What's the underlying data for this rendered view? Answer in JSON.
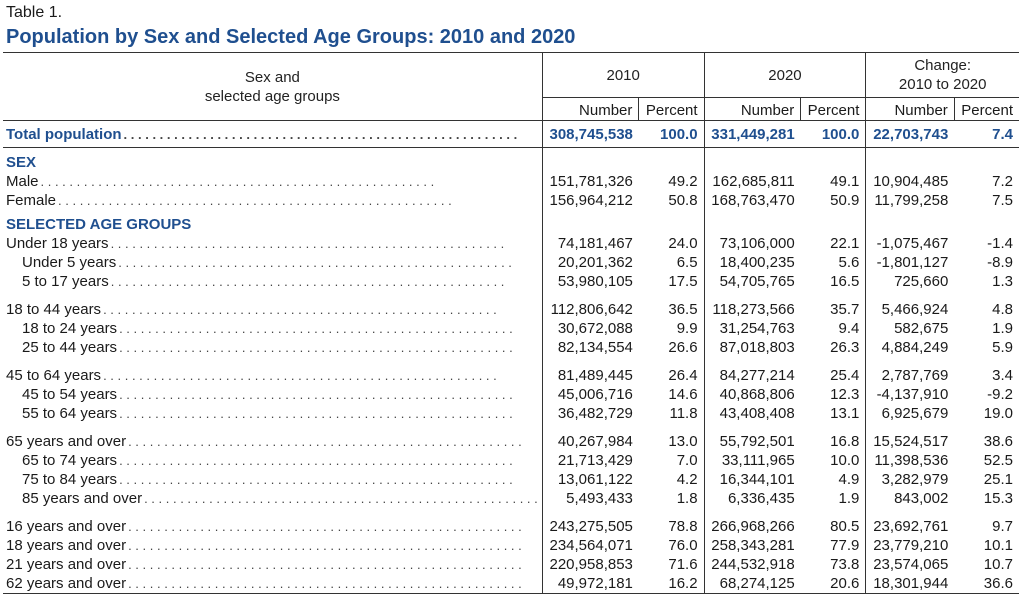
{
  "table_label": "Table 1.",
  "title": "Population by Sex and Selected Age Groups: 2010 and 2020",
  "header": {
    "stub_line1": "Sex and",
    "stub_line2": "selected age groups",
    "col_2010": "2010",
    "col_2020": "2020",
    "col_change_line1": "Change:",
    "col_change_line2": "2010 to 2020",
    "number": "Number",
    "percent": "Percent"
  },
  "total": {
    "label": "Total population",
    "n2010": "308,745,538",
    "p2010": "100.0",
    "n2020": "331,449,281",
    "p2020": "100.0",
    "nchg": "22,703,743",
    "pchg": "7.4"
  },
  "sections": {
    "sex": "SEX",
    "age": "SELECTED AGE GROUPS"
  },
  "rows": {
    "male": {
      "label": "Male",
      "n2010": "151,781,326",
      "p2010": "49.2",
      "n2020": "162,685,811",
      "p2020": "49.1",
      "nchg": "10,904,485",
      "pchg": "7.2"
    },
    "female": {
      "label": "Female",
      "n2010": "156,964,212",
      "p2010": "50.8",
      "n2020": "168,763,470",
      "p2020": "50.9",
      "nchg": "11,799,258",
      "pchg": "7.5"
    },
    "u18": {
      "label": "Under 18 years",
      "n2010": "74,181,467",
      "p2010": "24.0",
      "n2020": "73,106,000",
      "p2020": "22.1",
      "nchg": "-1,075,467",
      "pchg": "-1.4"
    },
    "u5": {
      "label": "Under 5 years",
      "n2010": "20,201,362",
      "p2010": "6.5",
      "n2020": "18,400,235",
      "p2020": "5.6",
      "nchg": "-1,801,127",
      "pchg": "-8.9"
    },
    "a5_17": {
      "label": "5 to 17 years",
      "n2010": "53,980,105",
      "p2010": "17.5",
      "n2020": "54,705,765",
      "p2020": "16.5",
      "nchg": "725,660",
      "pchg": "1.3"
    },
    "a18_44": {
      "label": "18 to 44 years",
      "n2010": "112,806,642",
      "p2010": "36.5",
      "n2020": "118,273,566",
      "p2020": "35.7",
      "nchg": "5,466,924",
      "pchg": "4.8"
    },
    "a18_24": {
      "label": "18 to 24 years",
      "n2010": "30,672,088",
      "p2010": "9.9",
      "n2020": "31,254,763",
      "p2020": "9.4",
      "nchg": "582,675",
      "pchg": "1.9"
    },
    "a25_44": {
      "label": "25 to 44 years",
      "n2010": "82,134,554",
      "p2010": "26.6",
      "n2020": "87,018,803",
      "p2020": "26.3",
      "nchg": "4,884,249",
      "pchg": "5.9"
    },
    "a45_64": {
      "label": "45 to 64 years",
      "n2010": "81,489,445",
      "p2010": "26.4",
      "n2020": "84,277,214",
      "p2020": "25.4",
      "nchg": "2,787,769",
      "pchg": "3.4"
    },
    "a45_54": {
      "label": "45 to 54 years",
      "n2010": "45,006,716",
      "p2010": "14.6",
      "n2020": "40,868,806",
      "p2020": "12.3",
      "nchg": "-4,137,910",
      "pchg": "-9.2"
    },
    "a55_64": {
      "label": "55 to 64 years",
      "n2010": "36,482,729",
      "p2010": "11.8",
      "n2020": "43,408,408",
      "p2020": "13.1",
      "nchg": "6,925,679",
      "pchg": "19.0"
    },
    "a65p": {
      "label": "65 years and over",
      "n2010": "40,267,984",
      "p2010": "13.0",
      "n2020": "55,792,501",
      "p2020": "16.8",
      "nchg": "15,524,517",
      "pchg": "38.6"
    },
    "a65_74": {
      "label": "65 to 74 years",
      "n2010": "21,713,429",
      "p2010": "7.0",
      "n2020": "33,111,965",
      "p2020": "10.0",
      "nchg": "11,398,536",
      "pchg": "52.5"
    },
    "a75_84": {
      "label": "75 to 84 years",
      "n2010": "13,061,122",
      "p2010": "4.2",
      "n2020": "16,344,101",
      "p2020": "4.9",
      "nchg": "3,282,979",
      "pchg": "25.1"
    },
    "a85p": {
      "label": "85 years and over",
      "n2010": "5,493,433",
      "p2010": "1.8",
      "n2020": "6,336,435",
      "p2020": "1.9",
      "nchg": "843,002",
      "pchg": "15.3"
    },
    "a16p": {
      "label": "16 years and over",
      "n2010": "243,275,505",
      "p2010": "78.8",
      "n2020": "266,968,266",
      "p2020": "80.5",
      "nchg": "23,692,761",
      "pchg": "9.7"
    },
    "a18p": {
      "label": "18 years and over",
      "n2010": "234,564,071",
      "p2010": "76.0",
      "n2020": "258,343,281",
      "p2020": "77.9",
      "nchg": "23,779,210",
      "pchg": "10.1"
    },
    "a21p": {
      "label": "21 years and over",
      "n2010": "220,958,853",
      "p2010": "71.6",
      "n2020": "244,532,918",
      "p2020": "73.8",
      "nchg": "23,574,065",
      "pchg": "10.7"
    },
    "a62p": {
      "label": "62 years and over",
      "n2010": "49,972,181",
      "p2010": "16.2",
      "n2020": "68,274,125",
      "p2020": "20.6",
      "nchg": "18,301,944",
      "pchg": "36.6"
    }
  },
  "colors": {
    "title_blue": "#1f4f8f",
    "text": "#1a1a1a",
    "rule": "#333333"
  }
}
